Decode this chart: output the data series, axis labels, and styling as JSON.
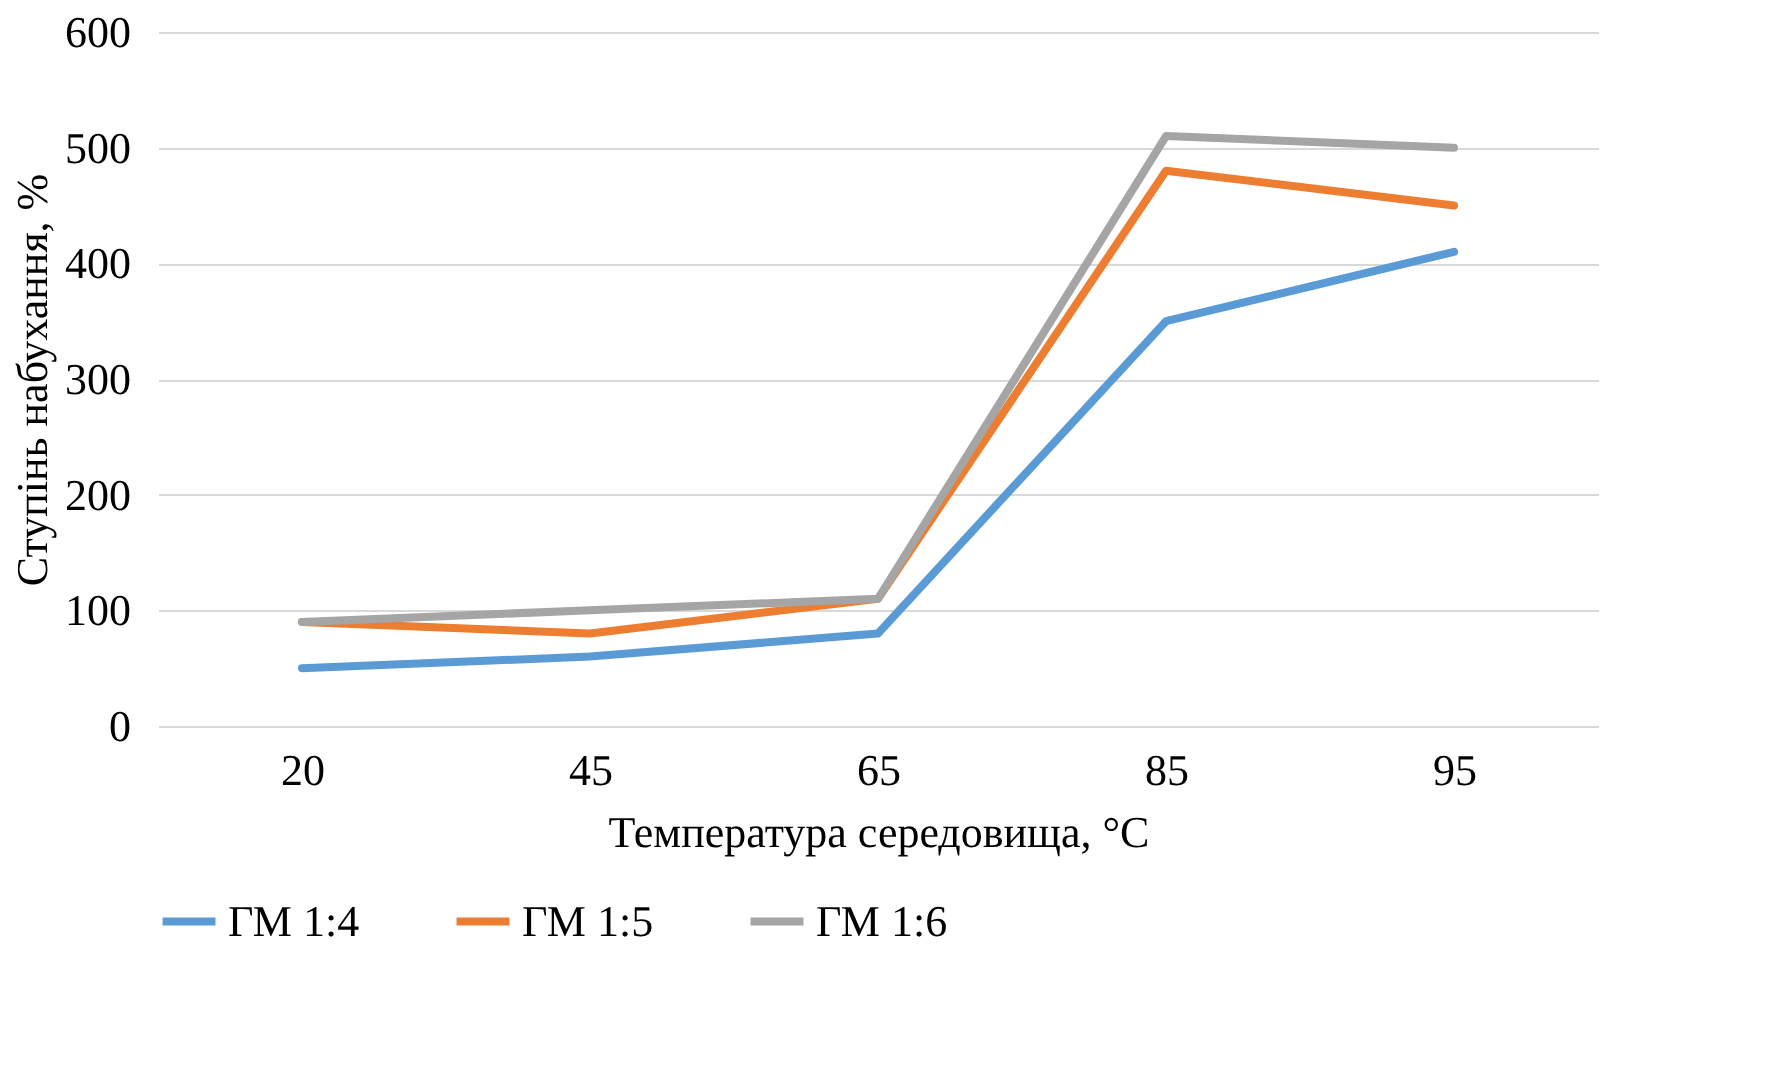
{
  "chart_data": {
    "type": "line",
    "xlabel": "Температура середовища, °C",
    "ylabel": "Ступінь набухання, %",
    "categories": [
      "20",
      "45",
      "65",
      "85",
      "95"
    ],
    "series": [
      {
        "name": "ГМ 1:4",
        "color": "#5b9bd5",
        "values": [
          50,
          60,
          80,
          350,
          410
        ]
      },
      {
        "name": "ГМ 1:5",
        "color": "#ed7d31",
        "values": [
          90,
          80,
          110,
          480,
          450
        ]
      },
      {
        "name": "ГМ 1:6",
        "color": "#a5a5a5",
        "values": [
          90,
          100,
          110,
          510,
          500
        ]
      }
    ],
    "ylim": [
      0,
      600
    ],
    "yticks": [
      0,
      100,
      200,
      300,
      400,
      500,
      600
    ],
    "grid": "y",
    "legend": "bottom",
    "marker": "none",
    "line_style": "solid"
  }
}
